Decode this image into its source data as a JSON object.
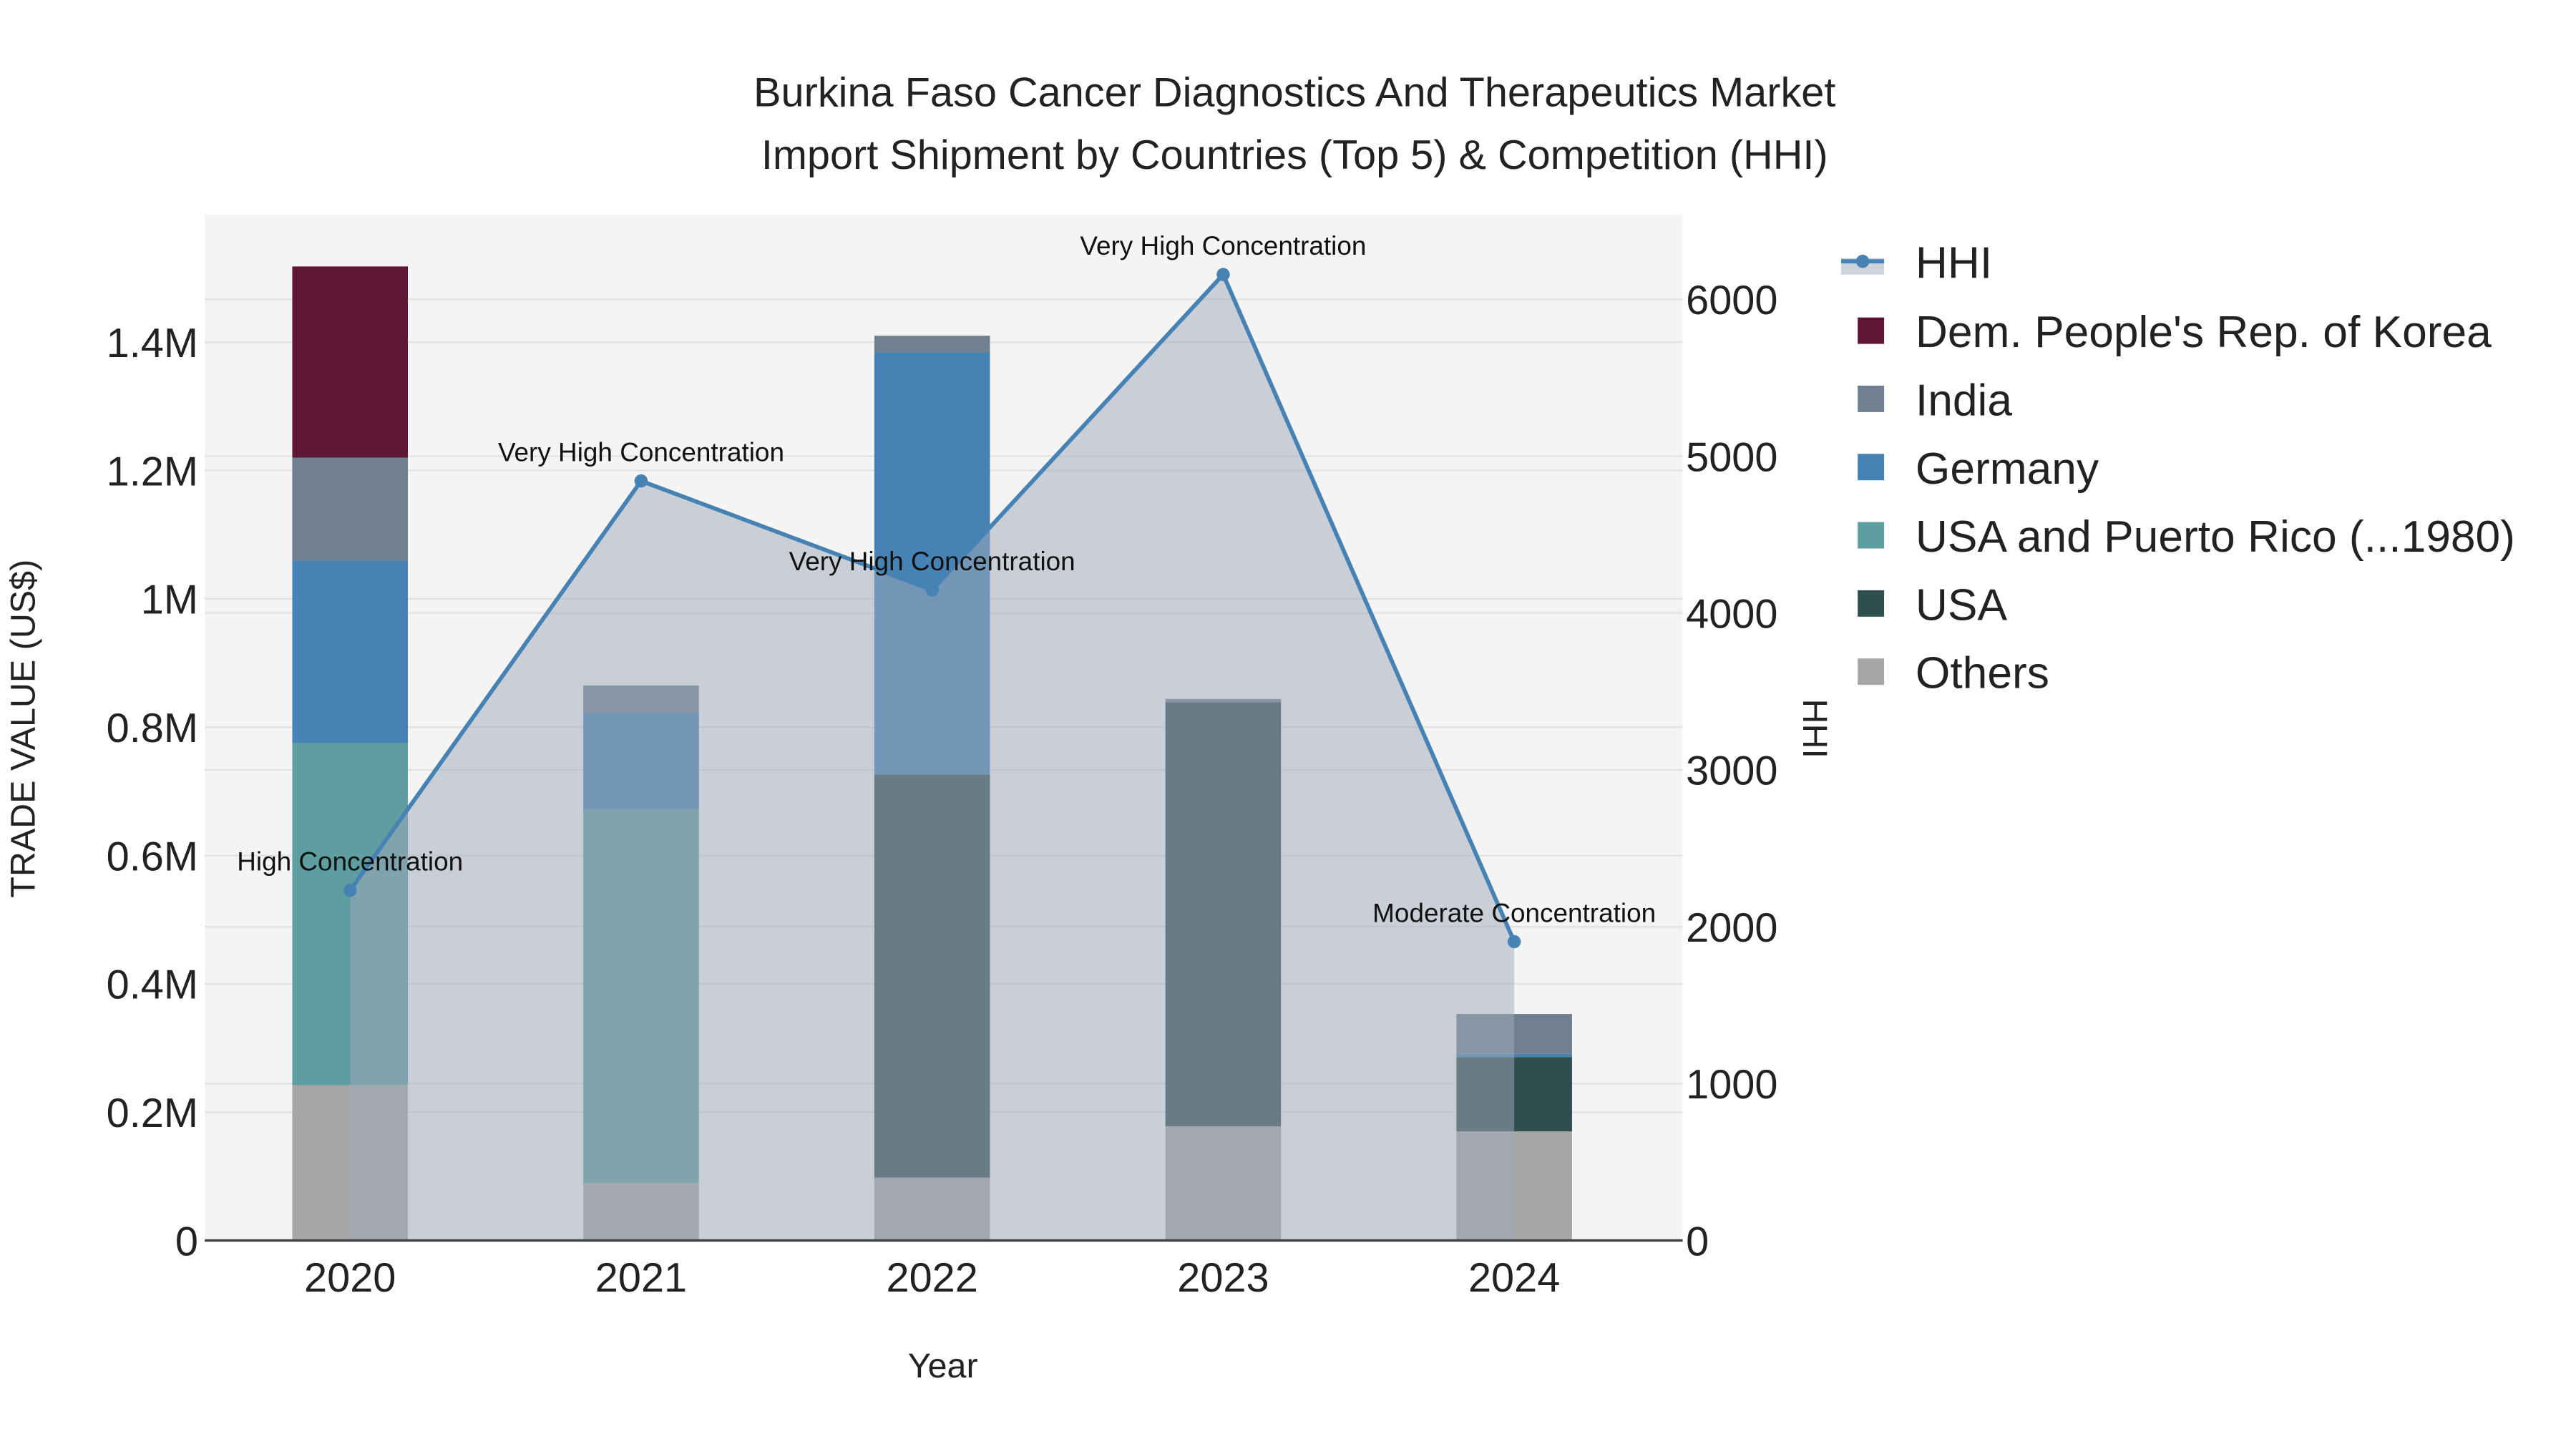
{
  "chart_data": {
    "type": "bar",
    "title_line1": "Burkina Faso Cancer Diagnostics And Therapeutics Market",
    "title_line2": "Import Shipment by Countries (Top 5) & Competition (HHI)",
    "xlabel": "Year",
    "ylabel": "TRADE VALUE (US$)",
    "y2label": "HHI",
    "categories": [
      "2020",
      "2021",
      "2022",
      "2023",
      "2024"
    ],
    "ylim": [
      0,
      1600000
    ],
    "y2lim": [
      0,
      6500
    ],
    "yticks": [
      {
        "v": 0,
        "label": "0"
      },
      {
        "v": 200000,
        "label": "0.2M"
      },
      {
        "v": 400000,
        "label": "0.4M"
      },
      {
        "v": 600000,
        "label": "0.6M"
      },
      {
        "v": 800000,
        "label": "0.8M"
      },
      {
        "v": 1000000,
        "label": "1M"
      },
      {
        "v": 1200000,
        "label": "1.2M"
      },
      {
        "v": 1400000,
        "label": "1.4M"
      }
    ],
    "y2ticks": [
      {
        "v": 0,
        "label": "0"
      },
      {
        "v": 1000,
        "label": "1000"
      },
      {
        "v": 2000,
        "label": "2000"
      },
      {
        "v": 3000,
        "label": "3000"
      },
      {
        "v": 4000,
        "label": "4000"
      },
      {
        "v": 5000,
        "label": "5000"
      },
      {
        "v": 6000,
        "label": "6000"
      }
    ],
    "series": [
      {
        "name": "Others",
        "color": "#a6a6a6",
        "values": [
          242000,
          90000,
          98000,
          178000,
          170000
        ]
      },
      {
        "name": "USA",
        "color": "#2f4f4f",
        "values": [
          0,
          0,
          628000,
          661000,
          116000
        ]
      },
      {
        "name": "USA and Puerto Rico (...1980)",
        "color": "#5f9ea0",
        "values": [
          533000,
          582000,
          0,
          0,
          0
        ]
      },
      {
        "name": "Germany",
        "color": "#4682b4",
        "values": [
          285000,
          151000,
          658000,
          0,
          5000
        ]
      },
      {
        "name": "India",
        "color": "#708090",
        "values": [
          160000,
          42000,
          26000,
          5000,
          62000
        ]
      },
      {
        "name": "Dem. People's Rep. of Korea",
        "color": "#5f1534",
        "values": [
          298000,
          0,
          0,
          0,
          0
        ]
      }
    ],
    "hhi": {
      "name": "HHI",
      "color": "#4682b4",
      "values": [
        2232,
        4842,
        4147,
        6158,
        1905
      ],
      "annotations": [
        "High Concentration",
        "Very High Concentration",
        "Very High Concentration",
        "Very High Concentration",
        "Moderate Concentration"
      ]
    },
    "legend_order": [
      "HHI",
      "Dem. People's Rep. of Korea",
      "India",
      "Germany",
      "USA and Puerto Rico (...1980)",
      "USA",
      "Others"
    ],
    "legend_placement": "right",
    "grid": true
  }
}
